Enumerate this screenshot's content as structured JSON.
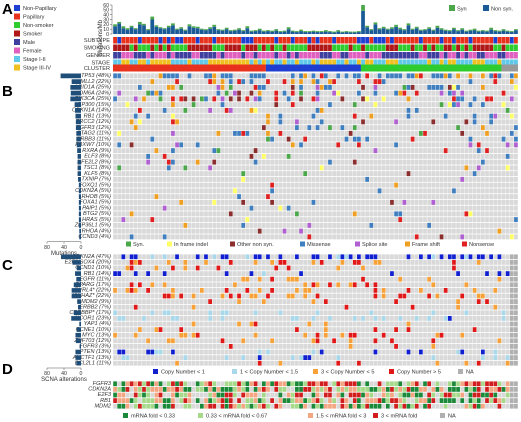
{
  "panel_letters": [
    "A",
    "B",
    "C",
    "D"
  ],
  "colors": {
    "syn": "#4aa84a",
    "non_syn": "#1a5a96",
    "cell_bg": "#d9d9d9",
    "in_frame_indel": "#ffff66",
    "other_non_syn": "#8b2e2e",
    "missense": "#3f7fbf",
    "splice_site": "#b060d0",
    "frame_shift": "#f0a020",
    "nonsense": "#e02020",
    "cn_lt1": "#1020d0",
    "cn_1_15": "#a8d8ea",
    "cn_3_5": "#f7a238",
    "cn_gt5": "#e01818",
    "na": "#b0b0b0",
    "mrna_low": "#1a8a3a",
    "mrna_midlow": "#a6d98a",
    "mrna_midhigh": "#f4a582",
    "mrna_high": "#d11d1d",
    "bar_left": "#1f4e79",
    "cluster_red": "#e8321e",
    "cluster_blue": "#1f3fd0",
    "cluster_green": "#2ecc2e",
    "cluster_gray": "#9a9a9a"
  },
  "annotation_legend": [
    {
      "label": "Non-Papillary",
      "color": "#1f3fd0"
    },
    {
      "label": "Papillary",
      "color": "#e8321e"
    },
    {
      "label": "Non-smoker",
      "color": "#2ecc2e"
    },
    {
      "label": "Smoker",
      "color": "#b01818"
    },
    {
      "label": "Male",
      "color": "#3f3f9f"
    },
    {
      "label": "Female",
      "color": "#e060c0"
    },
    {
      "label": "Stage I-II",
      "color": "#60c8e8"
    },
    {
      "label": "Stage III-IV",
      "color": "#f0c020"
    }
  ],
  "top_legend": [
    {
      "label": "Syn",
      "color": "#4aa84a"
    },
    {
      "label": "Non syn.",
      "color": "#1a5a96"
    }
  ],
  "annotation_tracks": [
    "SUBTYPE",
    "SMOKING",
    "GENDER",
    "STAGE",
    "CLUSTER"
  ],
  "chart_data": {
    "type": "heatmap",
    "n_samples": 98,
    "top_bar": {
      "ylabel": "Mutations/Mb",
      "yticks": [
        0,
        10,
        20,
        30,
        40,
        50,
        60
      ],
      "ylim": [
        0,
        60
      ],
      "series": [
        {
          "name": "Syn",
          "values": [
            4,
            3,
            4,
            3,
            3,
            2,
            5,
            3,
            2,
            6,
            3,
            2,
            2,
            3,
            4,
            2,
            3,
            2,
            4,
            3,
            3,
            2,
            2,
            3,
            4,
            2,
            2,
            3,
            2,
            2,
            3,
            2,
            4,
            2,
            2,
            3,
            2,
            2,
            2,
            3,
            2,
            2,
            4,
            2,
            2,
            3,
            2,
            2,
            2,
            2,
            2,
            3,
            2,
            2,
            3,
            2,
            2,
            2,
            2,
            2,
            12,
            3,
            2,
            4,
            2,
            3,
            2,
            3,
            4,
            3,
            2,
            4,
            2,
            3,
            2,
            2,
            3,
            2,
            4,
            3,
            2,
            2,
            3,
            2,
            3,
            2,
            2,
            3,
            2,
            2,
            2,
            4,
            2,
            2,
            3,
            2,
            2,
            2
          ]
        },
        {
          "name": "Non syn.",
          "values": [
            16,
            22,
            12,
            9,
            14,
            10,
            20,
            18,
            8,
            30,
            15,
            12,
            10,
            14,
            18,
            9,
            11,
            7,
            16,
            13,
            12,
            9,
            8,
            11,
            15,
            8,
            7,
            10,
            6,
            7,
            9,
            6,
            12,
            5,
            6,
            8,
            5,
            6,
            5,
            7,
            4,
            5,
            10,
            5,
            4,
            6,
            4,
            4,
            5,
            4,
            4,
            5,
            4,
            3,
            5,
            3,
            4,
            3,
            3,
            4,
            48,
            14,
            8,
            20,
            10,
            12,
            9,
            11,
            15,
            10,
            8,
            18,
            9,
            12,
            7,
            8,
            11,
            7,
            13,
            9,
            7,
            6,
            10,
            6,
            9,
            5,
            7,
            8,
            5,
            6,
            5,
            9,
            6,
            5,
            7,
            5,
            4,
            8
          ]
        }
      ]
    },
    "cluster_segments": [
      {
        "color": "#e8321e",
        "count": 37
      },
      {
        "color": "#1f3fd0",
        "count": 23
      },
      {
        "color": "#2ecc2e",
        "count": 34
      },
      {
        "color": "#9a9a9a",
        "count": 4
      }
    ],
    "mutation_genes": [
      "TP53 (48%)",
      "MLL2 (22%)",
      "ARID1A (25%)",
      "KDM6A (24%)",
      "PIK3CA (25%)",
      "EP300 (15%)",
      "CDKN1A (14%)",
      "RB1 (13%)",
      "ERCC2 (12%)",
      "FGFR3 (12%)",
      "STAG2 (11%)",
      "ERBB3 (11%)",
      "FBXW7 (10%)",
      "RXRA (9%)",
      "ELF3 (8%)",
      "NFE2L2 (8%)",
      "TSC1 (8%)",
      "KLF5 (8%)",
      "TXNIP (7%)",
      "FOXQ1 (5%)",
      "CDKN2A (5%)",
      "RHOB (5%)",
      "FOXA1 (5%)",
      "PAIP1 (5%)",
      "BTG2 (5%)",
      "HRAS (5%)",
      "ZFP36L1 (5%)",
      "RHOA (4%)",
      "CCND3 (4%)"
    ],
    "mutation_freq": [
      48,
      22,
      25,
      24,
      25,
      15,
      14,
      13,
      12,
      12,
      11,
      11,
      10,
      9,
      8,
      8,
      8,
      8,
      7,
      5,
      5,
      5,
      5,
      5,
      5,
      5,
      5,
      4,
      4
    ],
    "mutation_axis": {
      "label": "Mutations",
      "ticks": [
        80,
        40,
        0
      ]
    },
    "mutation_legend": [
      "Syn.",
      "In frame indel",
      "Other non syn.",
      "Missense",
      "Splice site",
      "Frame shift",
      "Nonsense"
    ],
    "cna_genes": [
      "CDKN2A (47%)",
      "E2F3/SOX4 (20%)",
      "CCND1 (10%)",
      "RB1 (14%)",
      "EGFR (11%)",
      "PPARG (17%)",
      "PVRL4* (22%)",
      "YWHAZ* (22%)",
      "MDM2 (9%)",
      "ERBB2 (7%)",
      "CREBBP* (17%)",
      "NCOR1 (23%)",
      "YAP1 (4%)",
      "CCNE1 (10%)",
      "MYC (13%)",
      "ZNF703 (12%)",
      "FGFR3 (3%)",
      "PTEN (13%)",
      "AHCTF1 (13%)",
      "BCL2L1 (11%)"
    ],
    "cna_freq": [
      47,
      20,
      10,
      14,
      11,
      17,
      22,
      22,
      9,
      7,
      17,
      23,
      4,
      10,
      13,
      12,
      3,
      13,
      13,
      11
    ],
    "cna_axis": {
      "label": "SCNA alterations",
      "ticks": [
        80,
        40,
        0
      ]
    },
    "cna_legend": [
      "Copy Number < 1",
      "1 < Copy Number < 1.5",
      "3 < Copy Number < 5",
      "Copy Number > 5",
      "NA"
    ],
    "mrna_genes": [
      "FGFR3",
      "CDKN2A",
      "E2F3",
      "RB1",
      "MDM2"
    ],
    "mrna_legend": [
      "mRNA fold < 0.33",
      "0.33 < mRNA fold < 0.67",
      "1.5 < mRNA fold < 3",
      "3 < mRNA fold",
      "NA"
    ]
  }
}
